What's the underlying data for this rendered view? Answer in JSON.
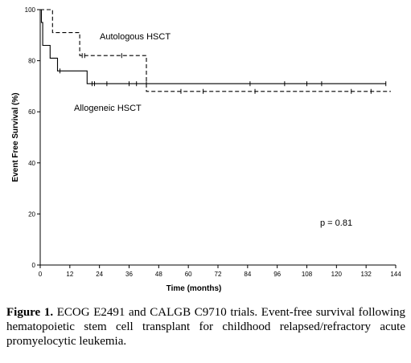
{
  "chart_data": {
    "type": "line",
    "xlabel": "Time (months)",
    "ylabel": "Event Free Survival (%)",
    "xlim": [
      0,
      144
    ],
    "ylim": [
      0,
      100
    ],
    "xticks": [
      0,
      12,
      24,
      36,
      48,
      60,
      72,
      84,
      96,
      108,
      120,
      132,
      144
    ],
    "yticks": [
      0,
      20,
      40,
      60,
      80,
      100
    ],
    "grid": false,
    "annotation": "p = 0.81",
    "series": [
      {
        "name": "Autologous HSCT",
        "style": "dashed",
        "step_points": [
          [
            0,
            100
          ],
          [
            5,
            100
          ],
          [
            5,
            91
          ],
          [
            16,
            91
          ],
          [
            16,
            82
          ],
          [
            43,
            82
          ],
          [
            43,
            68
          ],
          [
            142,
            68
          ]
        ],
        "censored_x": [
          17,
          18,
          33,
          57,
          66,
          87,
          126,
          134
        ]
      },
      {
        "name": "Allogeneic HSCT",
        "style": "solid",
        "step_points": [
          [
            0,
            100
          ],
          [
            0.5,
            100
          ],
          [
            0.5,
            95
          ],
          [
            1,
            95
          ],
          [
            1,
            86
          ],
          [
            4,
            86
          ],
          [
            4,
            81
          ],
          [
            7,
            81
          ],
          [
            7,
            76
          ],
          [
            19,
            76
          ],
          [
            19,
            71
          ],
          [
            140,
            71
          ]
        ],
        "censored_x": [
          8,
          21,
          22,
          27,
          36,
          39,
          43,
          85,
          99,
          108,
          114,
          140
        ]
      }
    ],
    "colors": {
      "line": "#000000",
      "axis": "#000000"
    }
  },
  "caption": {
    "label": "Figure 1.",
    "text": " ECOG E2491 and CALGB C9710 trials. Event-free survival following hematopoietic stem cell transplant for childhood relapsed/refractory acute promyelocytic leukemia."
  }
}
